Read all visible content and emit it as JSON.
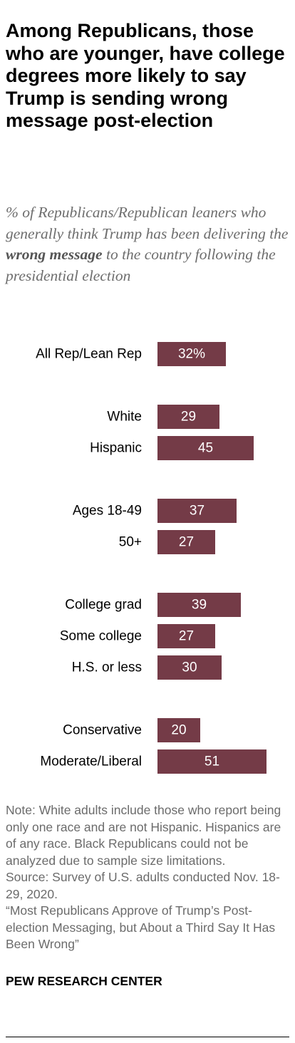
{
  "title": "Among Republicans, those who are younger, have college degrees more likely to say Trump is sending wrong message post-election",
  "subtitle": {
    "before": "% of Republicans/Republican leaners who generally think Trump has been delivering the ",
    "emphasis": "wrong message",
    "after": " to the country following the presidential election"
  },
  "colors": {
    "bar": "#743b47",
    "bar_text": "#ffffff",
    "label": "#000000"
  },
  "chart_data": {
    "type": "bar",
    "orientation": "horizontal",
    "categories": [
      "All Rep/Lean Rep",
      "White",
      "Hispanic",
      "Ages 18-49",
      "50+",
      "College grad",
      "Some college",
      "H.S. or less",
      "Conservative",
      "Moderate/Liberal"
    ],
    "groups": [
      [
        0
      ],
      [
        1,
        2
      ],
      [
        3,
        4
      ],
      [
        5,
        6,
        7
      ],
      [
        8,
        9
      ]
    ],
    "values": [
      32,
      29,
      45,
      37,
      27,
      39,
      27,
      30,
      20,
      51
    ],
    "data_labels": [
      "32%",
      "29",
      "45",
      "37",
      "27",
      "39",
      "27",
      "30",
      "20",
      "51"
    ],
    "unit": "%"
  },
  "note": {
    "note_text": "Note: White adults include those who report being only one race and are not Hispanic. Hispanics are of any race. Black Republicans could not be analyzed due to sample size limitations.",
    "source_text": "Source: Survey of U.S. adults conducted Nov. 18-29, 2020.",
    "report_title": "“Most Republicans Approve of Trump’s Post-election Messaging, but About a Third Say It Has Been Wrong”"
  },
  "brand": "PEW RESEARCH CENTER"
}
